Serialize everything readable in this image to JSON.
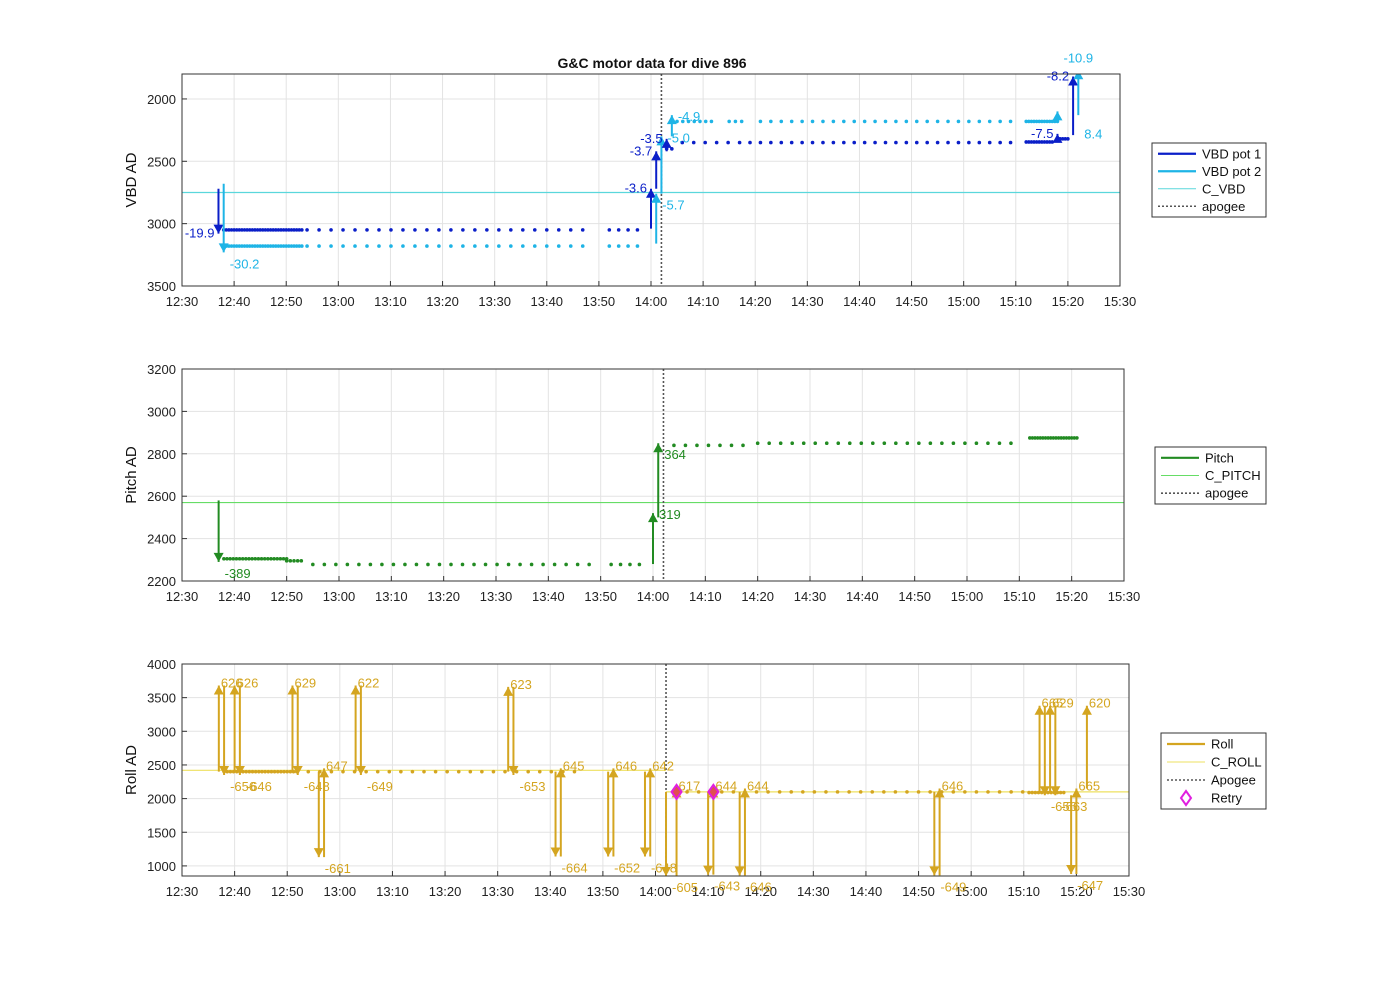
{
  "figure": {
    "title": "G&C motor data for dive 896"
  },
  "chart_data": [
    {
      "type": "scatter",
      "id": "vbd",
      "ylabel": "VBD AD",
      "xlabel": "",
      "xlim": [
        "12:30",
        "15:30"
      ],
      "ylim": [
        3500,
        1800
      ],
      "y_reversed": true,
      "grid": true,
      "legend_position": "outside-right",
      "x_ticks": [
        "12:30",
        "12:40",
        "12:50",
        "13:00",
        "13:10",
        "13:20",
        "13:30",
        "13:40",
        "13:50",
        "14:00",
        "14:10",
        "14:20",
        "14:30",
        "14:40",
        "14:50",
        "15:00",
        "15:10",
        "15:20",
        "15:30"
      ],
      "y_ticks": [
        2000,
        2500,
        3000,
        3500
      ],
      "legend": [
        {
          "label": "VBD pot 1",
          "style": "thick",
          "color": "#0a1ec8"
        },
        {
          "label": "VBD pot 2",
          "style": "thick",
          "color": "#1eb4e6"
        },
        {
          "label": "C_VBD",
          "style": "thin",
          "color": "#5ad7dc"
        },
        {
          "label": "apogee",
          "style": "dotted",
          "color": "#555555"
        }
      ],
      "hlines": [
        {
          "name": "C_VBD",
          "y": 2750,
          "color": "#5ad7dc"
        }
      ],
      "vlines": [
        {
          "name": "apogee",
          "x": "14:02",
          "color": "#555555"
        }
      ],
      "dot_series": [
        {
          "name": "VBD pot 1",
          "color": "#0a1ec8",
          "segments": [
            {
              "from": "12:38",
              "to": "12:53",
              "y": 3050,
              "step_min": 0.5
            },
            {
              "from": "12:54",
              "to": "13:48",
              "y": 3050,
              "step_min": 2.3
            },
            {
              "from": "13:52",
              "to": "13:58",
              "y": 3050,
              "step_min": 1.8
            },
            {
              "from": "14:03",
              "to": "14:04",
              "y": 2400,
              "step_min": 1
            },
            {
              "from": "14:06",
              "to": "14:17",
              "y": 2350,
              "step_min": 2.2
            },
            {
              "from": "14:19",
              "to": "15:10",
              "y": 2350,
              "step_min": 2.0
            },
            {
              "from": "15:12",
              "to": "15:17",
              "y": 2345,
              "step_min": 0.5
            },
            {
              "from": "15:18",
              "to": "15:20",
              "y": 2320,
              "step_min": 0.5
            }
          ]
        },
        {
          "name": "VBD pot 2",
          "color": "#1eb4e6",
          "segments": [
            {
              "from": "12:38",
              "to": "12:53",
              "y": 3180,
              "step_min": 0.5
            },
            {
              "from": "12:54",
              "to": "13:48",
              "y": 3180,
              "step_min": 2.3
            },
            {
              "from": "13:52",
              "to": "13:58",
              "y": 3180,
              "step_min": 1.8
            },
            {
              "from": "14:05",
              "to": "14:12",
              "y": 2180,
              "step_min": 1.1
            },
            {
              "from": "14:15",
              "to": "14:18",
              "y": 2180,
              "step_min": 1.2
            },
            {
              "from": "14:21",
              "to": "15:10",
              "y": 2180,
              "step_min": 2.0
            },
            {
              "from": "15:12",
              "to": "15:18",
              "y": 2180,
              "step_min": 0.5
            }
          ]
        }
      ],
      "moves": [
        {
          "series": "VBD pot 1",
          "t": "12:37",
          "y0": 2720,
          "y1": 3080,
          "label": "-19.9",
          "label_pos": "left"
        },
        {
          "series": "VBD pot 2",
          "t": "12:38",
          "y0": 2680,
          "y1": 3230,
          "label": "-30.2",
          "label_pos": "below-right"
        },
        {
          "series": "VBD pot 1",
          "t": "14:00",
          "y0": 3040,
          "y1": 2720,
          "label": "-3.6",
          "label_pos": "left"
        },
        {
          "series": "VBD pot 2",
          "t": "14:01",
          "y0": 3160,
          "y1": 2760,
          "label": "-5.7",
          "label_pos": "below-right"
        },
        {
          "series": "VBD pot 1",
          "t": "14:01",
          "y0": 2720,
          "y1": 2420,
          "label": "-3.7",
          "label_pos": "left"
        },
        {
          "series": "VBD pot 2",
          "t": "14:02",
          "y0": 2760,
          "y1": 2300,
          "label": "-5.0",
          "label_pos": "right"
        },
        {
          "series": "VBD pot 1",
          "t": "14:03",
          "y0": 2420,
          "y1": 2320,
          "label": "-3.5",
          "label_pos": "left"
        },
        {
          "series": "VBD pot 2",
          "t": "14:04",
          "y0": 2300,
          "y1": 2130,
          "label": "-4.9",
          "label_pos": "right"
        },
        {
          "series": "VBD pot 1",
          "t": "15:18",
          "y0": 2345,
          "y1": 2280,
          "label": "-7.5",
          "label_pos": "left"
        },
        {
          "series": "VBD pot 2",
          "t": "15:18",
          "y0": 2190,
          "y1": 2100,
          "label": "",
          "label_pos": "none"
        },
        {
          "series": "VBD pot 1",
          "t": "15:21",
          "y0": 2290,
          "y1": 1820,
          "label": "-8.2",
          "label_pos": "left"
        },
        {
          "series": "VBD pot 2",
          "t": "15:22",
          "y0": 2130,
          "y1": 1770,
          "label": "-10.9",
          "label_pos": "top"
        },
        {
          "series": "VBD pot 2",
          "t": "15:22",
          "y0": 2270,
          "y1": 2270,
          "label": "8.4",
          "label_pos": "right"
        }
      ]
    },
    {
      "type": "scatter",
      "id": "pitch",
      "ylabel": "Pitch AD",
      "xlabel": "",
      "xlim": [
        "12:30",
        "15:30"
      ],
      "ylim": [
        2200,
        3200
      ],
      "y_reversed": false,
      "grid": true,
      "legend_position": "outside-right",
      "x_ticks": [
        "12:30",
        "12:40",
        "12:50",
        "13:00",
        "13:10",
        "13:20",
        "13:30",
        "13:40",
        "13:50",
        "14:00",
        "14:10",
        "14:20",
        "14:30",
        "14:40",
        "14:50",
        "15:00",
        "15:10",
        "15:20",
        "15:30"
      ],
      "y_ticks": [
        2200,
        2400,
        2600,
        2800,
        3000,
        3200
      ],
      "legend": [
        {
          "label": "Pitch",
          "style": "thick",
          "color": "#228b22"
        },
        {
          "label": "C_PITCH",
          "style": "thin",
          "color": "#66dd66"
        },
        {
          "label": "apogee",
          "style": "dotted",
          "color": "#555555"
        }
      ],
      "hlines": [
        {
          "name": "C_PITCH",
          "y": 2570,
          "color": "#66dd66"
        }
      ],
      "vlines": [
        {
          "name": "apogee",
          "x": "14:02",
          "color": "#555555"
        }
      ],
      "dot_series": [
        {
          "name": "Pitch",
          "color": "#228b22",
          "segments": [
            {
              "from": "12:38",
              "to": "12:50",
              "y": 2305,
              "step_min": 0.6
            },
            {
              "from": "12:50",
              "to": "12:53",
              "y": 2295,
              "step_min": 0.7
            },
            {
              "from": "12:55",
              "to": "13:48",
              "y": 2278,
              "step_min": 2.2
            },
            {
              "from": "13:52",
              "to": "13:58",
              "y": 2278,
              "step_min": 1.8
            },
            {
              "from": "14:04",
              "to": "14:18",
              "y": 2840,
              "step_min": 2.2
            },
            {
              "from": "14:20",
              "to": "15:10",
              "y": 2850,
              "step_min": 2.2
            },
            {
              "from": "15:12",
              "to": "15:21",
              "y": 2875,
              "step_min": 0.5
            }
          ]
        }
      ],
      "moves": [
        {
          "series": "Pitch",
          "t": "12:37",
          "y0": 2580,
          "y1": 2290,
          "label": "-389",
          "label_pos": "below-right"
        },
        {
          "series": "Pitch",
          "t": "14:00",
          "y0": 2280,
          "y1": 2520,
          "label": "319",
          "label_pos": "right"
        },
        {
          "series": "Pitch",
          "t": "14:01",
          "y0": 2500,
          "y1": 2850,
          "label": "364",
          "label_pos": "below-right"
        }
      ]
    },
    {
      "type": "scatter",
      "id": "roll",
      "ylabel": "Roll AD",
      "xlabel": "",
      "xlim": [
        "12:30",
        "15:30"
      ],
      "ylim": [
        850,
        4000
      ],
      "y_reversed": false,
      "grid": true,
      "legend_position": "outside-right",
      "x_ticks": [
        "12:30",
        "12:40",
        "12:50",
        "13:00",
        "13:10",
        "13:20",
        "13:30",
        "13:40",
        "13:50",
        "14:00",
        "14:10",
        "14:20",
        "14:30",
        "14:40",
        "14:50",
        "15:00",
        "15:10",
        "15:20",
        "15:30"
      ],
      "y_ticks": [
        1000,
        1500,
        2000,
        2500,
        3000,
        3500,
        4000
      ],
      "legend": [
        {
          "label": "Roll",
          "style": "thick",
          "color": "#d4a520"
        },
        {
          "label": "C_ROLL",
          "style": "thin",
          "color": "#eee060"
        },
        {
          "label": "Apogee",
          "style": "dotted",
          "color": "#555555"
        },
        {
          "label": "Retry",
          "style": "diamond",
          "color": "#e020e0"
        }
      ],
      "hlines": [
        {
          "name": "C_ROLL",
          "y": 2420,
          "from": "12:30",
          "to": "14:02",
          "color": "#eee060"
        },
        {
          "name": "C_ROLL",
          "y": 2100,
          "from": "14:02",
          "to": "15:30",
          "color": "#eee060"
        }
      ],
      "vlines": [
        {
          "name": "Apogee",
          "x": "14:02",
          "color": "#555555"
        }
      ],
      "dot_series": [
        {
          "name": "Roll",
          "color": "#d4a520",
          "segments": [
            {
              "from": "12:38",
              "to": "12:52",
              "y": 2400,
              "step_min": 0.6
            },
            {
              "from": "12:54",
              "to": "13:46",
              "y": 2400,
              "step_min": 2.2
            },
            {
              "from": "14:06",
              "to": "15:10",
              "y": 2100,
              "step_min": 2.2
            },
            {
              "from": "15:11",
              "to": "15:18",
              "y": 2090,
              "step_min": 0.6
            }
          ]
        }
      ],
      "retry_points": [
        {
          "t": "14:04",
          "y": 2100
        },
        {
          "t": "14:11",
          "y": 2100
        }
      ],
      "moves": [
        {
          "series": "Roll",
          "t": "12:37",
          "y0": 2400,
          "y1": 3680,
          "label": "626",
          "label_pos": "top-right"
        },
        {
          "series": "Roll",
          "t": "12:38",
          "y0": 3680,
          "y1": 2350,
          "label": "-656",
          "label_pos": "below-right"
        },
        {
          "series": "Roll",
          "t": "12:40",
          "y0": 2400,
          "y1": 3680,
          "label": "626",
          "label_pos": "top-right"
        },
        {
          "series": "Roll",
          "t": "12:41",
          "y0": 3680,
          "y1": 2350,
          "label": "-646",
          "label_pos": "below-right"
        },
        {
          "series": "Roll",
          "t": "12:51",
          "y0": 2400,
          "y1": 3680,
          "label": "629",
          "label_pos": "top-right"
        },
        {
          "series": "Roll",
          "t": "12:52",
          "y0": 3680,
          "y1": 2350,
          "label": "-648",
          "label_pos": "below-right"
        },
        {
          "series": "Roll",
          "t": "12:56",
          "y0": 2400,
          "y1": 1130,
          "label": "-661",
          "label_pos": "below-right"
        },
        {
          "series": "Roll",
          "t": "12:57",
          "y0": 1130,
          "y1": 2450,
          "label": "647",
          "label_pos": "top-right"
        },
        {
          "series": "Roll",
          "t": "13:03",
          "y0": 2400,
          "y1": 3680,
          "label": "622",
          "label_pos": "top-right"
        },
        {
          "series": "Roll",
          "t": "13:04",
          "y0": 3680,
          "y1": 2350,
          "label": "-649",
          "label_pos": "below-right"
        },
        {
          "series": "Roll",
          "t": "13:32",
          "y0": 2400,
          "y1": 3660,
          "label": "623",
          "label_pos": "top-right"
        },
        {
          "series": "Roll",
          "t": "13:33",
          "y0": 3660,
          "y1": 2350,
          "label": "-653",
          "label_pos": "below-right"
        },
        {
          "series": "Roll",
          "t": "13:41",
          "y0": 2400,
          "y1": 1140,
          "label": "-664",
          "label_pos": "below-right"
        },
        {
          "series": "Roll",
          "t": "13:42",
          "y0": 1140,
          "y1": 2450,
          "label": "645",
          "label_pos": "top-right"
        },
        {
          "series": "Roll",
          "t": "13:51",
          "y0": 2400,
          "y1": 1140,
          "label": "-652",
          "label_pos": "below-right"
        },
        {
          "series": "Roll",
          "t": "13:52",
          "y0": 1140,
          "y1": 2450,
          "label": "646",
          "label_pos": "top-right"
        },
        {
          "series": "Roll",
          "t": "13:58",
          "y0": 2400,
          "y1": 1140,
          "label": "-648",
          "label_pos": "below-right"
        },
        {
          "series": "Roll",
          "t": "13:59",
          "y0": 1140,
          "y1": 2450,
          "label": "642",
          "label_pos": "top-right"
        },
        {
          "series": "Roll",
          "t": "14:02",
          "y0": 2100,
          "y1": 850,
          "label": "-605",
          "label_pos": "below-right"
        },
        {
          "series": "Roll",
          "t": "14:04",
          "y0": 850,
          "y1": 2150,
          "label": "617",
          "label_pos": "top-right"
        },
        {
          "series": "Roll",
          "t": "14:10",
          "y0": 2100,
          "y1": 870,
          "label": "-643",
          "label_pos": "below-right"
        },
        {
          "series": "Roll",
          "t": "14:11",
          "y0": 870,
          "y1": 2150,
          "label": "644",
          "label_pos": "top-right"
        },
        {
          "series": "Roll",
          "t": "14:16",
          "y0": 2100,
          "y1": 860,
          "label": "-646",
          "label_pos": "below-right"
        },
        {
          "series": "Roll",
          "t": "14:17",
          "y0": 860,
          "y1": 2150,
          "label": "644",
          "label_pos": "top-right"
        },
        {
          "series": "Roll",
          "t": "14:53",
          "y0": 2100,
          "y1": 860,
          "label": "-649",
          "label_pos": "below-right"
        },
        {
          "series": "Roll",
          "t": "14:54",
          "y0": 860,
          "y1": 2150,
          "label": "646",
          "label_pos": "top-right"
        },
        {
          "series": "Roll",
          "t": "15:13",
          "y0": 2100,
          "y1": 3380,
          "label": "665",
          "label_pos": "top-right"
        },
        {
          "series": "Roll",
          "t": "15:14",
          "y0": 3380,
          "y1": 2050,
          "label": "-656",
          "label_pos": "below-right"
        },
        {
          "series": "Roll",
          "t": "15:15",
          "y0": 2100,
          "y1": 3380,
          "label": "629",
          "label_pos": "top-right"
        },
        {
          "series": "Roll",
          "t": "15:16",
          "y0": 3380,
          "y1": 2050,
          "label": "-663",
          "label_pos": "below-right"
        },
        {
          "series": "Roll",
          "t": "15:19",
          "y0": 2050,
          "y1": 880,
          "label": "-647",
          "label_pos": "below-right"
        },
        {
          "series": "Roll",
          "t": "15:20",
          "y0": 880,
          "y1": 2150,
          "label": "665",
          "label_pos": "top-right"
        },
        {
          "series": "Roll",
          "t": "15:22",
          "y0": 2150,
          "y1": 3380,
          "label": "620",
          "label_pos": "top-right"
        }
      ]
    }
  ]
}
